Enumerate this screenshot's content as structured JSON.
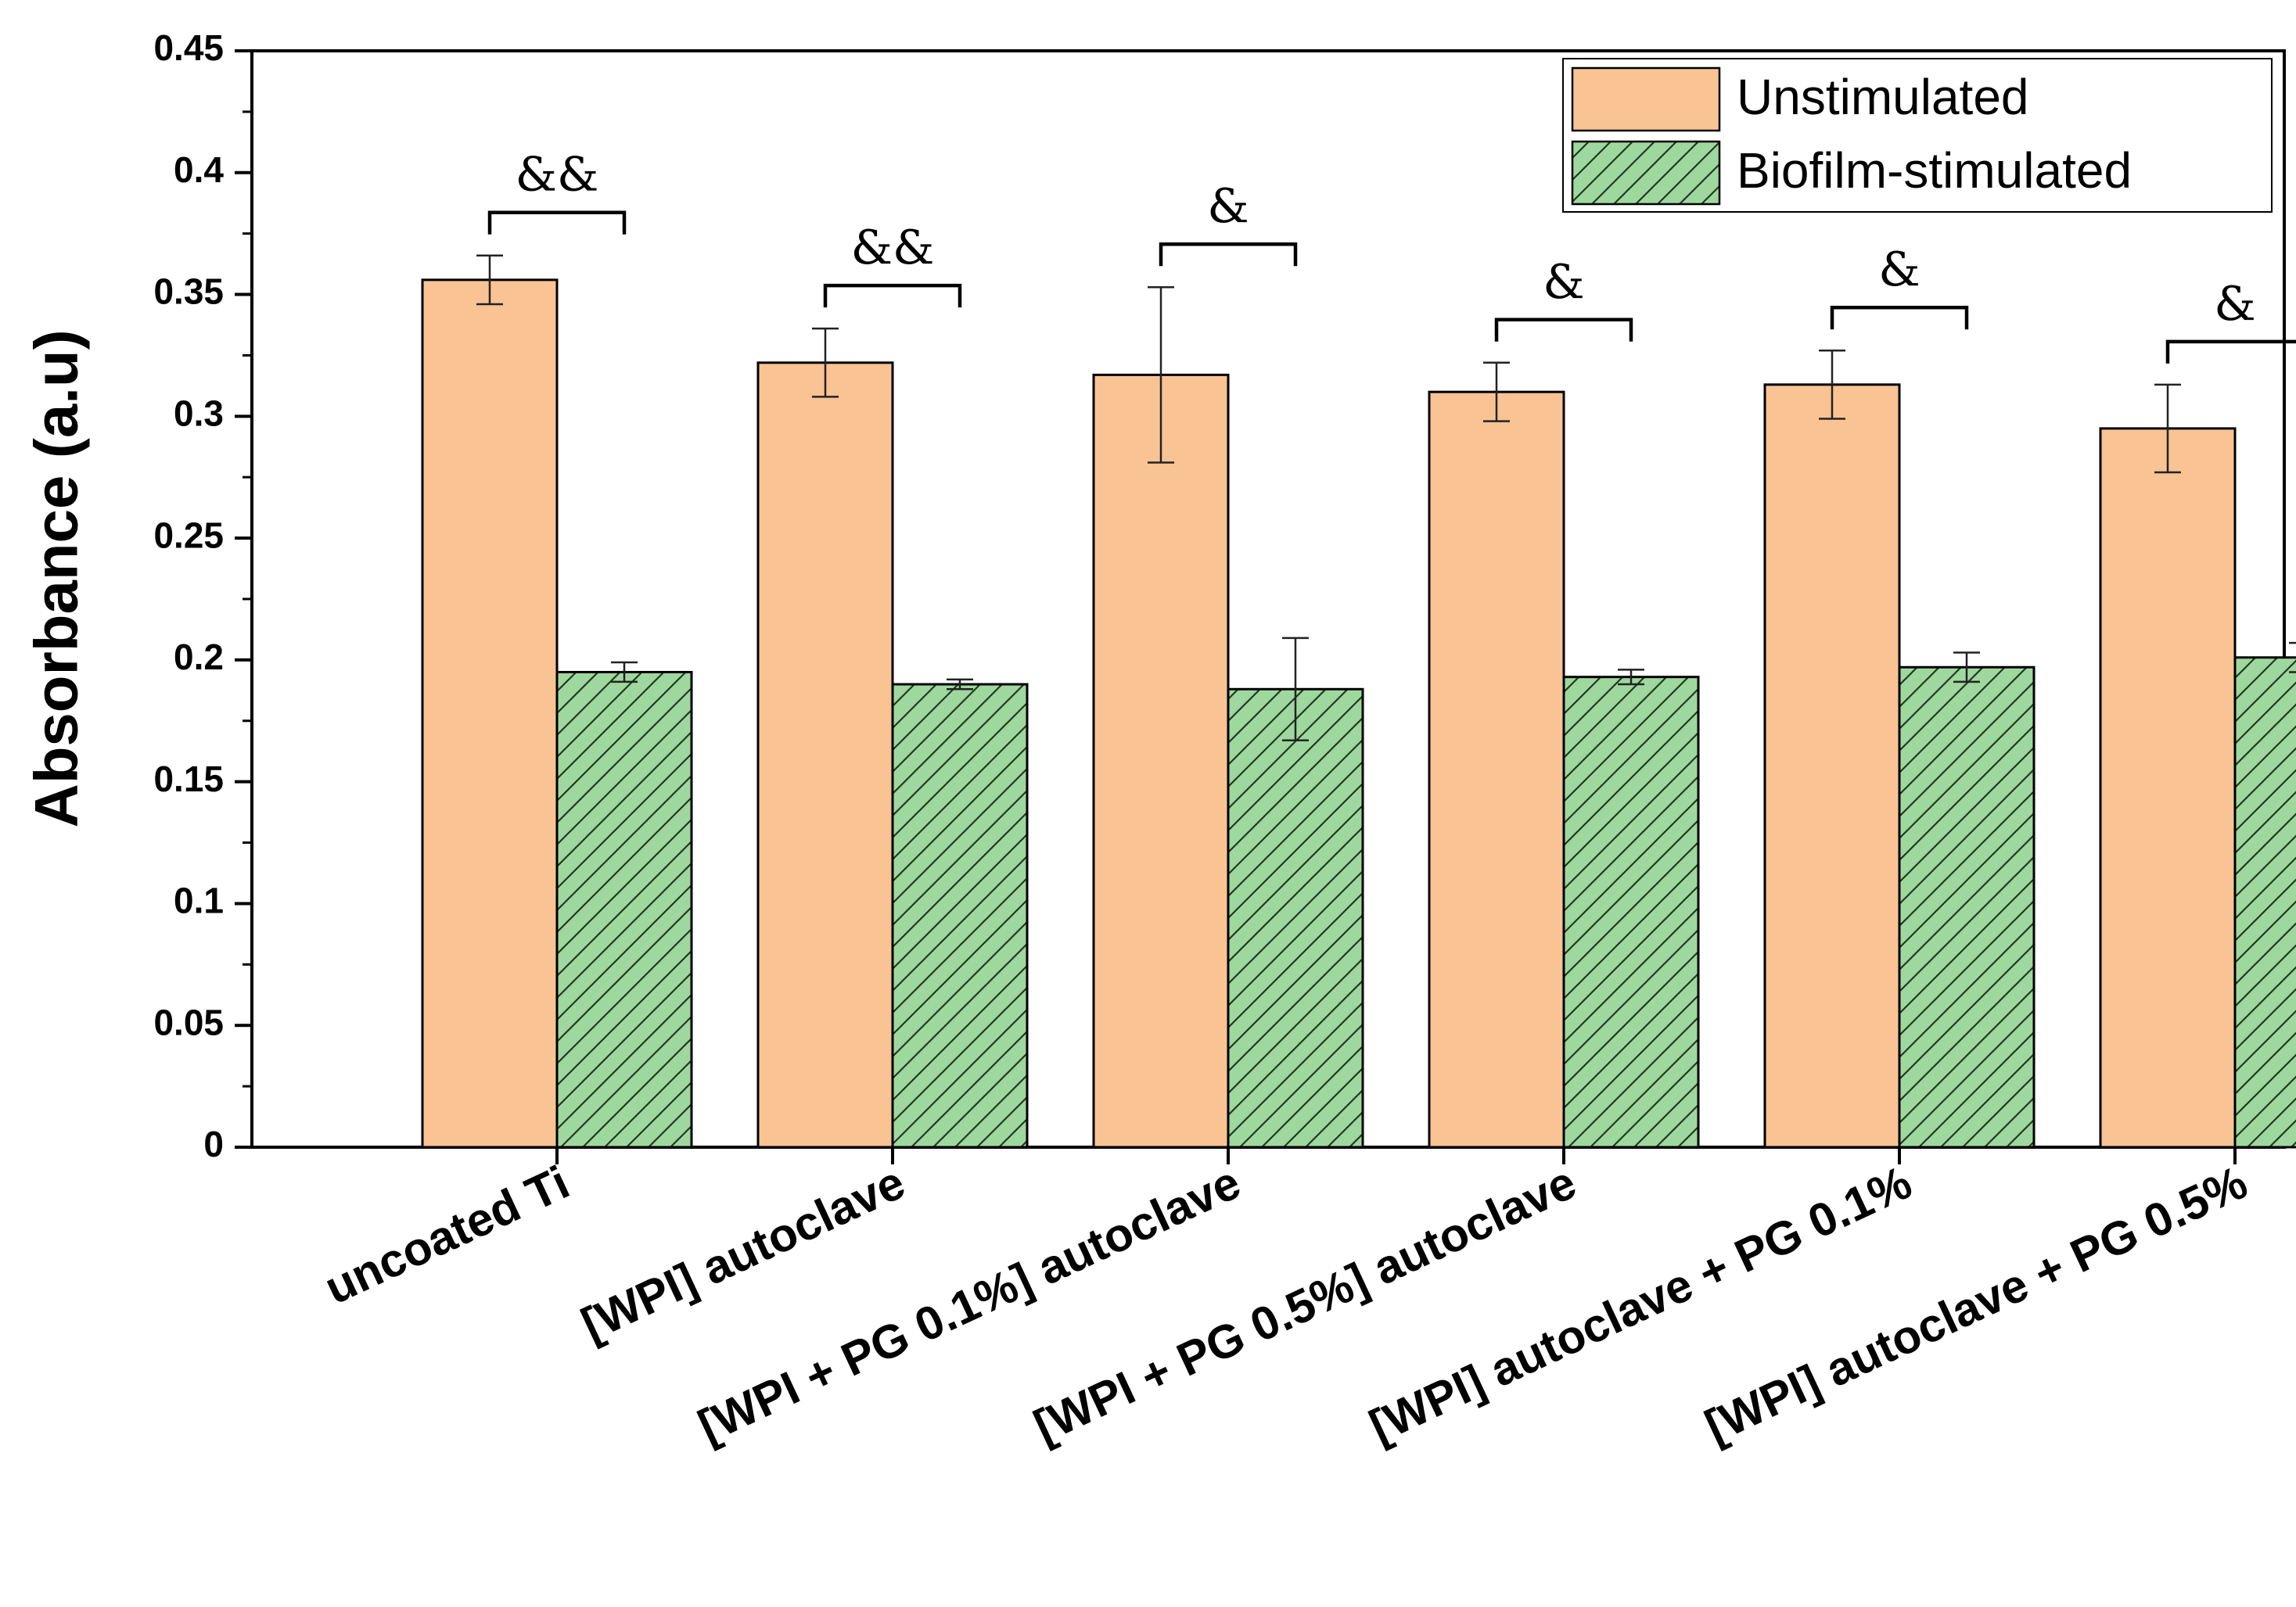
{
  "chart_data": {
    "type": "bar",
    "title": "",
    "xlabel": "",
    "ylabel": "Absorbance (a.u)",
    "ylim": [
      0,
      0.45
    ],
    "yticks": [
      "0",
      "0.05",
      "0.1",
      "0.15",
      "0.2",
      "0.25",
      "0.3",
      "0.35",
      "0.4",
      "0.45"
    ],
    "categories": [
      "uncoated Ti",
      "[WPI] autoclave",
      "[WPI + PG 0.1%] autoclave",
      "[WPI + PG 0.5%] autoclave",
      "[WPI] autoclave + PG 0.1%",
      "[WPI] autoclave + PG 0.5%"
    ],
    "series": [
      {
        "name": "Unstimulated",
        "color": "#f9c394",
        "pattern": "solid",
        "values": [
          0.356,
          0.322,
          0.317,
          0.31,
          0.313,
          0.295
        ],
        "errors": [
          0.01,
          0.014,
          0.036,
          0.012,
          0.014,
          0.018
        ]
      },
      {
        "name": "Biofilm-stimulated",
        "color": "#9fd89f",
        "pattern": "diagonal-hatch",
        "values": [
          0.195,
          0.19,
          0.188,
          0.193,
          0.197,
          0.201
        ],
        "errors": [
          0.004,
          0.002,
          0.021,
          0.003,
          0.006,
          0.006
        ]
      }
    ],
    "significance": [
      "&&",
      "&&",
      "&",
      "&",
      "&",
      "&"
    ],
    "legend_position": "top-right",
    "grid": false
  }
}
